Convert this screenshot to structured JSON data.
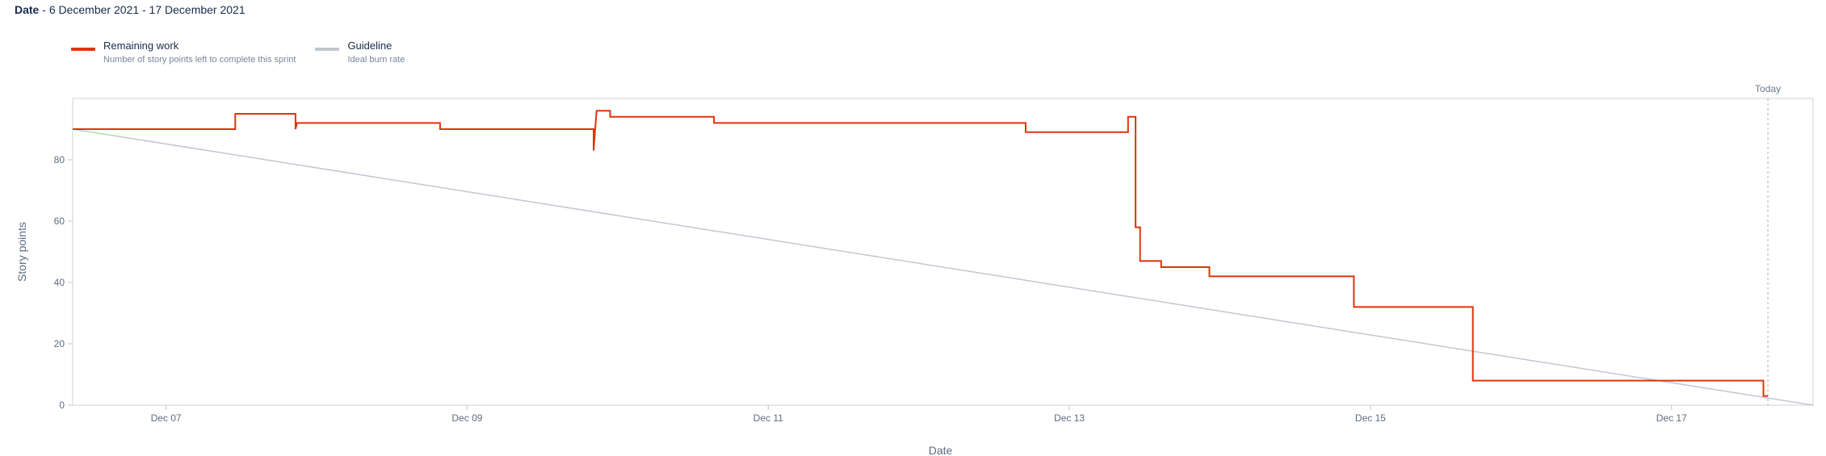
{
  "header": {
    "label": "Date",
    "separator": " - ",
    "range": "6 December 2021 - 17 December 2021"
  },
  "legend": [
    {
      "name": "Remaining work",
      "description": "Number of story points left to complete this sprint",
      "color": "#de350b"
    },
    {
      "name": "Guideline",
      "description": "Ideal burn rate",
      "color": "#c1c7d0"
    }
  ],
  "chart_data": {
    "type": "line",
    "xlabel": "Date",
    "ylabel": "Story points",
    "ylim": [
      0,
      100
    ],
    "yticks": [
      0,
      20,
      40,
      60,
      80
    ],
    "xticks": [
      {
        "day": 7,
        "label": "Dec 07"
      },
      {
        "day": 9,
        "label": "Dec 09"
      },
      {
        "day": 11,
        "label": "Dec 11"
      },
      {
        "day": 13,
        "label": "Dec 13"
      },
      {
        "day": 15,
        "label": "Dec 15"
      },
      {
        "day": 17,
        "label": "Dec 17"
      }
    ],
    "xlim_days": [
      6.38,
      17.94
    ],
    "today_marker": {
      "day": 17.64,
      "label": "Today"
    },
    "grid": false,
    "legend_position": "top-left",
    "series": [
      {
        "name": "Remaining work",
        "color": "#de350b",
        "step": true,
        "points": [
          [
            6.38,
            90
          ],
          [
            7.46,
            90
          ],
          [
            7.46,
            95
          ],
          [
            7.86,
            95
          ],
          [
            7.86,
            90
          ],
          [
            7.87,
            92
          ],
          [
            8.82,
            92
          ],
          [
            8.82,
            90
          ],
          [
            9.84,
            90
          ],
          [
            9.84,
            83
          ],
          [
            9.86,
            96
          ],
          [
            9.95,
            96
          ],
          [
            9.95,
            94
          ],
          [
            10.64,
            94
          ],
          [
            10.64,
            92
          ],
          [
            12.71,
            92
          ],
          [
            12.71,
            89
          ],
          [
            13.39,
            89
          ],
          [
            13.39,
            94
          ],
          [
            13.44,
            94
          ],
          [
            13.44,
            58
          ],
          [
            13.47,
            58
          ],
          [
            13.47,
            47
          ],
          [
            13.61,
            47
          ],
          [
            13.61,
            45
          ],
          [
            13.93,
            45
          ],
          [
            13.93,
            42
          ],
          [
            14.89,
            42
          ],
          [
            14.89,
            32
          ],
          [
            15.68,
            32
          ],
          [
            15.68,
            8
          ],
          [
            17.61,
            8
          ],
          [
            17.61,
            3
          ],
          [
            17.64,
            3
          ]
        ]
      },
      {
        "name": "Guideline",
        "color": "#c1c7d0",
        "step": false,
        "points": [
          [
            6.38,
            90
          ],
          [
            17.94,
            0
          ]
        ]
      }
    ]
  }
}
